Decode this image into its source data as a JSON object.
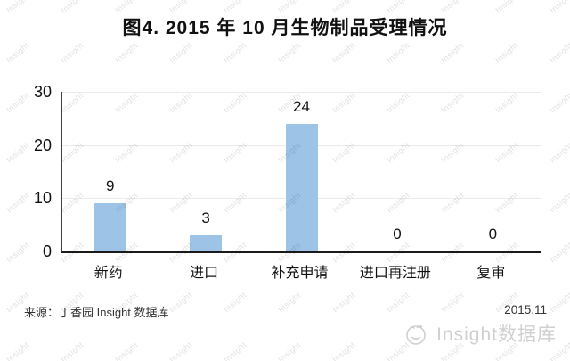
{
  "title": "图4. 2015 年 10 月生物制品受理情况",
  "footer": {
    "source": "来源：丁香园 Insight 数据库",
    "date": "2015.11"
  },
  "watermark": {
    "tile_text": "Insight",
    "brand_text": "Insight数据库",
    "logo": "insight-face-logo"
  },
  "colors": {
    "bar": "#9dc3e6",
    "grid": "#ebebeb",
    "axis_left": "#3f3f3f",
    "axis_bottom": "#1a1a1a",
    "text": "#111111",
    "footer_text": "#333333",
    "watermark": "#d9d9d9",
    "brand_watermark": "#d0d0d0"
  },
  "chart_data": {
    "type": "bar",
    "categories": [
      "新药",
      "进口",
      "补充申请",
      "进口再注册",
      "复审"
    ],
    "values": [
      9,
      3,
      24,
      0,
      0
    ],
    "title": "图4. 2015 年 10 月生物制品受理情况",
    "xlabel": "",
    "ylabel": "",
    "ylim": [
      0,
      30
    ],
    "yticks": [
      0,
      10,
      20,
      30
    ],
    "grid": true,
    "legend": false,
    "data_labels": true,
    "bar_color": "#9dc3e6"
  }
}
